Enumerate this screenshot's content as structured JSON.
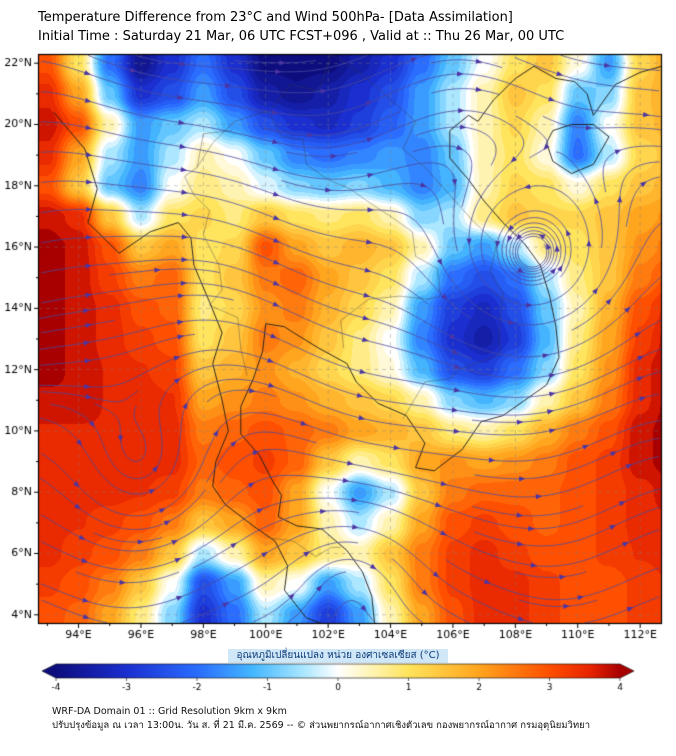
{
  "title": {
    "line1": "Temperature Difference from 23°C and Wind 500hPa- [Data Assimilation]",
    "line2": "Initial Time : Saturday 21 Mar, 06 UTC FCST+096 , Valid at ::  Thu 26 Mar, 00 UTC"
  },
  "colorbar": {
    "label": "อุณหภูมิเปลี่ยนแปลง หน่วย องศาเซลเซียส (°C)",
    "ticks": [
      -4,
      -3,
      -2,
      -1,
      0,
      1,
      2,
      3,
      4
    ]
  },
  "footer": {
    "line1": "WRF-DA Domain 01 :: Grid Resolution 9km x 9km",
    "line2": "ปรับปรุงข้อมูล ณ เวลา 13:00น. วัน ส. ที่ 21 มี.ค. 2569 -- © ส่วนพยากรณ์อากาศเชิงตัวเลข กองพยากรณ์อากาศ กรมอุตุนิยมวิทยา"
  },
  "chart_data": {
    "type": "heatmap",
    "title": "Temperature Difference from 23°C and Wind 500hPa",
    "units": "°C",
    "extent": {
      "lon_min": 92.7,
      "lon_max": 112.7,
      "lat_min": 3.7,
      "lat_max": 22.3
    },
    "axes": {
      "x_ticks": [
        {
          "v": 94,
          "label": "94°E"
        },
        {
          "v": 96,
          "label": "96°E"
        },
        {
          "v": 98,
          "label": "98°E"
        },
        {
          "v": 100,
          "label": "100°E"
        },
        {
          "v": 102,
          "label": "102°E"
        },
        {
          "v": 104,
          "label": "104°E"
        },
        {
          "v": 106,
          "label": "106°E"
        },
        {
          "v": 108,
          "label": "108°E"
        },
        {
          "v": 110,
          "label": "110°E"
        },
        {
          "v": 112,
          "label": "112°E"
        }
      ],
      "y_ticks": [
        {
          "v": 22,
          "label": "22°N"
        },
        {
          "v": 20,
          "label": "20°N"
        },
        {
          "v": 18,
          "label": "18°N"
        },
        {
          "v": 16,
          "label": "16°N"
        },
        {
          "v": 14,
          "label": "14°N"
        },
        {
          "v": 12,
          "label": "12°N"
        },
        {
          "v": 10,
          "label": "10°N"
        },
        {
          "v": 8,
          "label": "8°N"
        },
        {
          "v": 6,
          "label": "6°N"
        },
        {
          "v": 4,
          "label": "4°N"
        }
      ]
    },
    "palette": [
      {
        "v": -4.0,
        "c": "#0d0d7e"
      },
      {
        "v": -3.0,
        "c": "#1b2fd0"
      },
      {
        "v": -2.0,
        "c": "#2a6cff"
      },
      {
        "v": -1.2,
        "c": "#45b8ff"
      },
      {
        "v": -0.5,
        "c": "#a9e6ff"
      },
      {
        "v": 0.0,
        "c": "#ffffff"
      },
      {
        "v": 0.5,
        "c": "#fff3b0"
      },
      {
        "v": 1.0,
        "c": "#ffe45c"
      },
      {
        "v": 2.0,
        "c": "#ffa51e"
      },
      {
        "v": 3.0,
        "c": "#ff4f00"
      },
      {
        "v": 3.6,
        "c": "#e62200"
      },
      {
        "v": 4.0,
        "c": "#a80000"
      }
    ],
    "grid": {
      "lon": [
        93,
        94,
        95,
        96,
        97,
        98,
        99,
        100,
        101,
        102,
        103,
        104,
        105,
        106,
        107,
        108,
        109,
        110,
        111,
        112,
        113
      ],
      "lat": [
        23,
        22,
        21,
        20,
        19,
        18,
        17,
        16,
        15,
        14,
        13,
        12,
        11,
        10,
        9,
        8,
        7,
        6,
        5,
        4,
        3
      ],
      "values": [
        [
          2.5,
          1.5,
          -1.5,
          -3.5,
          -3.0,
          -2.5,
          -3.5,
          -4.0,
          -4.0,
          -4.0,
          -3.8,
          -3.5,
          -2.5,
          -1.5,
          -0.5,
          0.5,
          1.5,
          0.8,
          -0.8,
          1.5,
          2.0
        ],
        [
          3.0,
          1.0,
          -2.0,
          -3.8,
          -3.0,
          -2.0,
          -3.0,
          -4.0,
          -4.0,
          -4.0,
          -3.5,
          -3.0,
          -2.0,
          -1.0,
          0.0,
          1.0,
          1.5,
          0.2,
          -1.5,
          1.2,
          2.0
        ],
        [
          3.5,
          2.0,
          -1.0,
          -3.0,
          -2.5,
          -1.5,
          -2.5,
          -3.5,
          -3.8,
          -3.5,
          -3.0,
          -2.5,
          -1.5,
          -0.5,
          0.5,
          1.5,
          1.0,
          -1.0,
          -0.8,
          1.5,
          2.0
        ],
        [
          3.8,
          3.0,
          0.5,
          -1.5,
          -1.0,
          -0.5,
          -1.5,
          -2.5,
          -3.0,
          -3.2,
          -2.8,
          -2.2,
          -1.5,
          -0.5,
          0.5,
          1.2,
          0.5,
          -1.8,
          0.0,
          1.5,
          1.8
        ],
        [
          3.5,
          2.0,
          -0.5,
          -1.5,
          -0.5,
          0.5,
          0.0,
          -1.0,
          -1.8,
          -2.0,
          -1.8,
          -1.5,
          -1.8,
          -1.0,
          0.5,
          1.0,
          0.2,
          -2.0,
          -0.5,
          1.2,
          1.5
        ],
        [
          3.0,
          1.5,
          -1.0,
          -1.8,
          0.0,
          0.8,
          0.5,
          -0.2,
          -0.8,
          -1.0,
          -0.8,
          -1.2,
          -1.8,
          -1.2,
          0.5,
          1.2,
          1.0,
          0.2,
          1.0,
          1.5,
          1.8
        ],
        [
          3.8,
          3.5,
          1.5,
          -0.5,
          1.0,
          1.2,
          0.8,
          1.5,
          1.0,
          0.8,
          1.0,
          0.5,
          -0.8,
          -0.5,
          0.8,
          1.5,
          1.2,
          1.2,
          1.5,
          2.0,
          2.2
        ],
        [
          4.0,
          3.8,
          3.0,
          1.5,
          2.0,
          1.0,
          1.2,
          3.0,
          2.0,
          1.5,
          1.8,
          1.5,
          0.5,
          -1.0,
          -1.5,
          -0.5,
          0.8,
          1.0,
          1.5,
          2.2,
          2.5
        ],
        [
          4.0,
          3.8,
          3.2,
          2.5,
          2.8,
          1.0,
          1.5,
          2.5,
          2.8,
          2.0,
          1.5,
          1.0,
          -0.5,
          -2.0,
          -2.5,
          -2.0,
          -0.5,
          0.8,
          1.5,
          2.5,
          3.0
        ],
        [
          4.0,
          3.8,
          3.5,
          3.0,
          2.8,
          0.8,
          1.2,
          2.2,
          2.5,
          1.8,
          1.2,
          0.5,
          -1.5,
          -2.8,
          -3.2,
          -2.5,
          -1.0,
          0.5,
          1.8,
          3.0,
          3.5
        ],
        [
          4.0,
          3.8,
          3.5,
          3.2,
          3.0,
          1.0,
          1.5,
          2.5,
          2.2,
          1.5,
          0.8,
          0.0,
          -1.8,
          -3.0,
          -3.5,
          -2.8,
          -1.2,
          0.8,
          2.0,
          3.2,
          3.8
        ],
        [
          4.0,
          3.8,
          3.6,
          3.4,
          3.2,
          1.5,
          1.8,
          2.2,
          1.8,
          1.2,
          0.8,
          0.2,
          -1.2,
          -2.5,
          -2.8,
          -2.0,
          -0.8,
          1.0,
          2.2,
          3.5,
          4.0
        ],
        [
          3.8,
          3.8,
          3.6,
          3.5,
          3.4,
          2.0,
          2.2,
          2.5,
          2.2,
          1.8,
          1.5,
          1.2,
          0.5,
          -0.8,
          -1.2,
          -0.8,
          0.5,
          1.5,
          2.5,
          3.5,
          4.0
        ],
        [
          3.6,
          3.6,
          3.6,
          3.5,
          3.5,
          2.5,
          2.8,
          3.0,
          2.8,
          2.5,
          2.0,
          1.8,
          1.5,
          0.8,
          0.5,
          1.0,
          1.8,
          2.5,
          3.0,
          3.8,
          4.0
        ],
        [
          3.5,
          3.5,
          3.5,
          3.5,
          3.5,
          2.8,
          3.0,
          3.2,
          2.8,
          1.5,
          0.5,
          1.0,
          2.0,
          2.2,
          2.0,
          2.2,
          2.5,
          3.0,
          3.2,
          3.8,
          4.0
        ],
        [
          3.5,
          3.5,
          3.5,
          3.4,
          3.2,
          2.5,
          2.8,
          3.0,
          2.0,
          0.0,
          -1.5,
          -0.5,
          1.5,
          2.5,
          2.8,
          2.8,
          2.8,
          3.0,
          3.2,
          3.5,
          3.8
        ],
        [
          3.5,
          3.4,
          3.2,
          3.0,
          2.5,
          1.5,
          2.0,
          2.8,
          2.0,
          0.5,
          -0.5,
          0.5,
          2.0,
          3.0,
          3.2,
          3.0,
          2.8,
          3.0,
          3.2,
          3.5,
          3.6
        ],
        [
          3.5,
          3.2,
          3.0,
          2.5,
          1.5,
          -0.5,
          0.5,
          2.0,
          1.5,
          0.8,
          0.5,
          1.5,
          2.5,
          3.2,
          3.5,
          3.2,
          3.0,
          3.0,
          3.2,
          3.4,
          3.5
        ],
        [
          3.2,
          3.0,
          2.5,
          1.5,
          0.0,
          -2.5,
          -1.5,
          0.5,
          0.0,
          -1.5,
          -0.5,
          1.0,
          2.5,
          3.2,
          3.5,
          3.5,
          3.2,
          3.0,
          3.0,
          3.2,
          3.4
        ],
        [
          3.0,
          2.8,
          2.0,
          0.8,
          -0.8,
          -3.0,
          -2.0,
          -0.5,
          -1.5,
          -2.8,
          -1.5,
          0.5,
          2.0,
          3.0,
          3.5,
          3.5,
          3.2,
          3.0,
          3.0,
          3.2,
          3.4
        ],
        [
          3.0,
          2.5,
          1.8,
          0.5,
          -1.0,
          -3.0,
          -2.2,
          -0.8,
          -2.0,
          -3.0,
          -1.8,
          0.0,
          1.8,
          2.8,
          3.4,
          3.5,
          3.2,
          3.0,
          3.0,
          3.2,
          3.4
        ]
      ]
    },
    "wind": {
      "base_u": 1.0,
      "wave_amp": 0.32,
      "vortices": [
        {
          "lon": 108.6,
          "lat": 15.2,
          "strength": 1.7,
          "radius": 3.0
        },
        {
          "lon": 96.2,
          "lat": 8.3,
          "strength": 1.1,
          "radius": 2.4
        },
        {
          "lon": 102.8,
          "lat": 5.6,
          "strength": -0.9,
          "radius": 2.2
        }
      ]
    },
    "colors": {
      "streamline": "#4a4a9e",
      "arrow": "#4b35a3",
      "coast": "#1a1a1a",
      "border": "#3c3c3c",
      "graticule": "#808080",
      "frame": "#000000"
    },
    "coastlines": [
      [
        [
          93.2,
          20.4
        ],
        [
          94.2,
          19.2
        ],
        [
          94.6,
          17.9
        ],
        [
          94.3,
          16.8
        ],
        [
          95.3,
          15.8
        ],
        [
          96.3,
          16.5
        ],
        [
          97.2,
          16.8
        ],
        [
          97.6,
          16.3
        ],
        [
          97.7,
          15.4
        ],
        [
          98.2,
          14.2
        ],
        [
          98.6,
          13.2
        ],
        [
          98.3,
          12.2
        ],
        [
          98.6,
          11.0
        ],
        [
          98.8,
          10.0
        ],
        [
          98.4,
          9.0
        ],
        [
          98.3,
          8.2
        ],
        [
          98.7,
          7.6
        ],
        [
          99.6,
          6.9
        ],
        [
          100.3,
          6.4
        ],
        [
          100.7,
          5.6
        ],
        [
          100.6,
          4.8
        ],
        [
          101.3,
          3.9
        ],
        [
          102.1,
          3.6
        ]
      ],
      [
        [
          103.5,
          3.6
        ],
        [
          103.4,
          4.6
        ],
        [
          103.1,
          5.4
        ],
        [
          102.6,
          6.1
        ],
        [
          101.8,
          6.8
        ],
        [
          101.0,
          6.9
        ],
        [
          100.4,
          7.2
        ],
        [
          100.5,
          7.9
        ],
        [
          100.2,
          8.4
        ],
        [
          99.8,
          9.2
        ],
        [
          99.2,
          9.9
        ],
        [
          99.2,
          10.8
        ],
        [
          99.6,
          11.7
        ],
        [
          99.9,
          12.6
        ],
        [
          100.0,
          13.5
        ],
        [
          100.6,
          13.4
        ],
        [
          100.9,
          13.2
        ],
        [
          101.7,
          12.7
        ],
        [
          102.6,
          12.2
        ],
        [
          102.9,
          11.6
        ],
        [
          103.6,
          10.9
        ],
        [
          104.5,
          10.5
        ],
        [
          105.1,
          9.6
        ],
        [
          104.8,
          8.8
        ],
        [
          105.4,
          8.7
        ],
        [
          106.3,
          9.4
        ],
        [
          106.9,
          10.3
        ],
        [
          107.6,
          10.5
        ],
        [
          108.3,
          11.0
        ],
        [
          109.0,
          11.5
        ],
        [
          109.4,
          12.4
        ],
        [
          109.3,
          13.4
        ],
        [
          109.1,
          14.4
        ],
        [
          108.8,
          15.4
        ],
        [
          108.3,
          16.1
        ],
        [
          107.6,
          16.8
        ],
        [
          107.0,
          17.5
        ],
        [
          106.5,
          18.2
        ],
        [
          105.9,
          18.9
        ],
        [
          105.9,
          19.8
        ],
        [
          106.5,
          20.3
        ],
        [
          106.8,
          20.1
        ],
        [
          107.3,
          20.8
        ],
        [
          108.0,
          21.5
        ]
      ],
      [
        [
          108.0,
          21.5
        ],
        [
          108.6,
          21.9
        ],
        [
          109.3,
          21.5
        ],
        [
          109.9,
          21.4
        ],
        [
          110.3,
          21.0
        ],
        [
          110.5,
          20.3
        ],
        [
          111.2,
          21.3
        ],
        [
          112.0,
          21.7
        ],
        [
          112.7,
          21.9
        ]
      ],
      [
        [
          109.2,
          19.8
        ],
        [
          109.8,
          20.0
        ],
        [
          110.5,
          20.0
        ],
        [
          111.0,
          19.6
        ],
        [
          110.5,
          18.7
        ],
        [
          109.8,
          18.4
        ],
        [
          109.2,
          18.8
        ],
        [
          109.0,
          19.4
        ],
        [
          109.2,
          19.8
        ]
      ]
    ],
    "borders": [
      [
        [
          98.9,
          19.8
        ],
        [
          98.0,
          19.7
        ],
        [
          97.8,
          18.6
        ],
        [
          97.4,
          18.3
        ],
        [
          97.7,
          17.7
        ],
        [
          98.2,
          17.2
        ],
        [
          98.0,
          16.4
        ],
        [
          98.5,
          15.4
        ],
        [
          98.6,
          14.6
        ],
        [
          98.2,
          14.1
        ],
        [
          99.1,
          13.7
        ],
        [
          99.2,
          12.7
        ],
        [
          99.4,
          11.8
        ]
      ],
      [
        [
          100.1,
          20.4
        ],
        [
          100.5,
          19.6
        ],
        [
          101.2,
          19.5
        ],
        [
          101.3,
          18.7
        ],
        [
          102.0,
          18.2
        ],
        [
          102.7,
          17.9
        ],
        [
          103.4,
          17.4
        ],
        [
          104.0,
          17.0
        ],
        [
          104.7,
          16.5
        ],
        [
          104.8,
          15.7
        ],
        [
          105.5,
          15.3
        ],
        [
          105.6,
          14.4
        ],
        [
          105.2,
          14.3
        ],
        [
          104.3,
          14.4
        ],
        [
          103.3,
          14.3
        ],
        [
          102.4,
          13.6
        ],
        [
          102.5,
          12.7
        ]
      ],
      [
        [
          97.8,
          18.6
        ],
        [
          98.3,
          19.4
        ],
        [
          99.0,
          20.1
        ],
        [
          99.9,
          20.4
        ],
        [
          100.1,
          20.4
        ],
        [
          100.8,
          21.3
        ],
        [
          101.7,
          21.1
        ],
        [
          102.1,
          22.3
        ]
      ],
      [
        [
          102.1,
          22.3
        ],
        [
          103.0,
          21.7
        ],
        [
          103.9,
          20.9
        ],
        [
          104.8,
          20.1
        ],
        [
          104.4,
          19.2
        ],
        [
          105.1,
          18.6
        ],
        [
          105.9,
          17.7
        ],
        [
          106.6,
          16.9
        ],
        [
          107.4,
          16.1
        ],
        [
          107.2,
          15.2
        ],
        [
          107.6,
          14.5
        ],
        [
          107.5,
          13.6
        ],
        [
          107.5,
          12.5
        ],
        [
          106.2,
          12.0
        ],
        [
          105.9,
          11.7
        ],
        [
          105.1,
          11.6
        ],
        [
          104.4,
          10.4
        ]
      ],
      [
        [
          100.2,
          6.5
        ],
        [
          100.9,
          6.4
        ],
        [
          101.6,
          5.9
        ],
        [
          102.1,
          6.2
        ],
        [
          102.4,
          6.2
        ]
      ]
    ]
  }
}
